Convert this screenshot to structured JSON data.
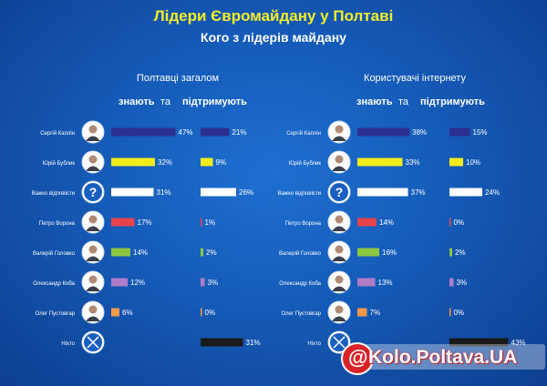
{
  "header": {
    "title": "Лідери Євромайдану у Полтаві",
    "subtitle": "Кого з лідерів майдану"
  },
  "groups": [
    {
      "title": "Полтавці загалом",
      "know_label": "знають",
      "and_label": "та",
      "support_label": "підтримують"
    },
    {
      "title": "Користувачі інтернету",
      "know_label": "знають",
      "and_label": "та",
      "support_label": "підтримують"
    }
  ],
  "watermark": {
    "text": "Kolo.Poltava.UA"
  },
  "colors": {
    "bg": "#155bb8",
    "title": "#f4ee2a"
  },
  "chart_data": [
    {
      "type": "bar",
      "title": "Полтавці загалом",
      "categories": [
        "Сергій Каплін",
        "Юрій Бублик",
        "Важко відповісти",
        "Петро Ворона",
        "Валерій Головко",
        "Олександр Коба",
        "Олег Пустовгар",
        "Ніхто"
      ],
      "series": [
        {
          "name": "знають",
          "values": [
            47,
            32,
            31,
            17,
            14,
            12,
            6,
            null
          ]
        },
        {
          "name": "підтримують",
          "values": [
            21,
            9,
            26,
            1,
            2,
            3,
            0,
            31
          ]
        }
      ]
    },
    {
      "type": "bar",
      "title": "Користувачі інтернету",
      "categories": [
        "Сергій Каплін",
        "Юрій Бублик",
        "Важко відповісти",
        "Петро Ворона",
        "Валерій Головко",
        "Олександр Коба",
        "Олег Пустовгар",
        "Ніхто"
      ],
      "series": [
        {
          "name": "знають",
          "values": [
            38,
            33,
            37,
            14,
            16,
            13,
            7,
            null
          ]
        },
        {
          "name": "підтримують",
          "values": [
            15,
            10,
            24,
            0,
            2,
            3,
            0,
            43
          ]
        }
      ]
    }
  ],
  "row_colors": [
    "#2b2f8f",
    "#f2ec1c",
    "#ffffff",
    "#e8434b",
    "#8dc63f",
    "#b07cc6",
    "#f29a4a",
    "#1a1a1a"
  ],
  "row_icons": [
    "avatar-icon",
    "avatar-icon",
    "question-icon",
    "avatar-icon",
    "avatar-icon",
    "avatar-icon",
    "avatar-icon",
    "cross-icon"
  ]
}
